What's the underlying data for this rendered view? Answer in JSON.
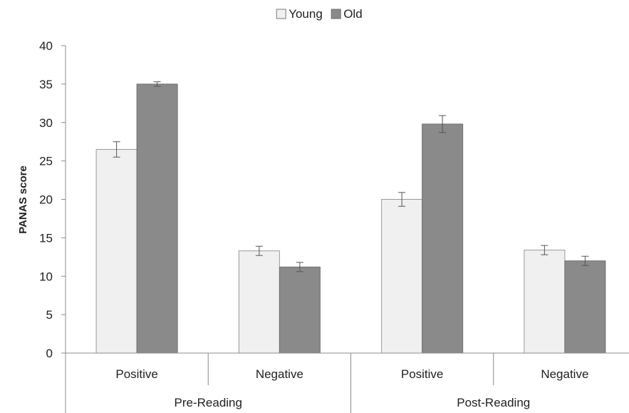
{
  "chart_data": {
    "type": "bar",
    "title": "",
    "xlabel": "",
    "ylabel": "PANAS score",
    "ylim": [
      0,
      40
    ],
    "yticks": [
      0,
      5,
      10,
      15,
      20,
      25,
      30,
      35,
      40
    ],
    "grid": false,
    "legend_position": "top-center",
    "categories": [
      "Positive",
      "Negative",
      "Positive",
      "Negative"
    ],
    "groups": [
      {
        "label": "Pre-Reading",
        "categories": [
          0,
          1
        ]
      },
      {
        "label": "Post-Reading",
        "categories": [
          2,
          3
        ]
      }
    ],
    "series": [
      {
        "name": "Young",
        "color": "#f0f0f0",
        "values": [
          26.5,
          13.3,
          20.0,
          13.4
        ],
        "errors": [
          1.0,
          0.6,
          0.9,
          0.6
        ]
      },
      {
        "name": "Old",
        "color": "#8a8a8a",
        "values": [
          35.0,
          11.2,
          29.8,
          12.0
        ],
        "errors": [
          0.3,
          0.6,
          1.1,
          0.6
        ]
      }
    ]
  }
}
